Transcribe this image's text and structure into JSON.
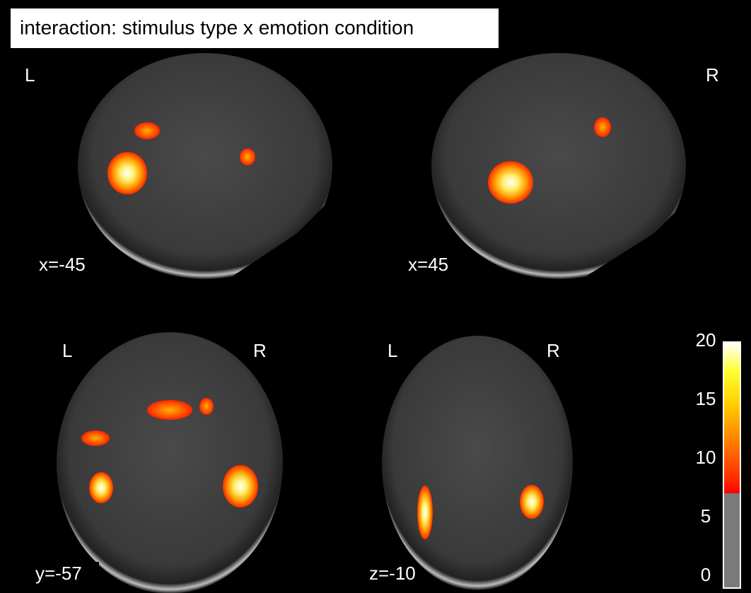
{
  "title": "interaction: stimulus type x emotion condition",
  "panels": [
    {
      "left": "L",
      "coordinate": "x=-45"
    },
    {
      "right": "R",
      "coordinate": "x=45"
    },
    {
      "left": "L",
      "right": "R",
      "coordinate": "y=-57"
    },
    {
      "left": "L",
      "right": "R",
      "coordinate": "z=-10"
    }
  ],
  "colorbar": {
    "lim": [
      0,
      20
    ],
    "ticks": [
      0,
      5,
      10,
      15,
      20
    ]
  }
}
